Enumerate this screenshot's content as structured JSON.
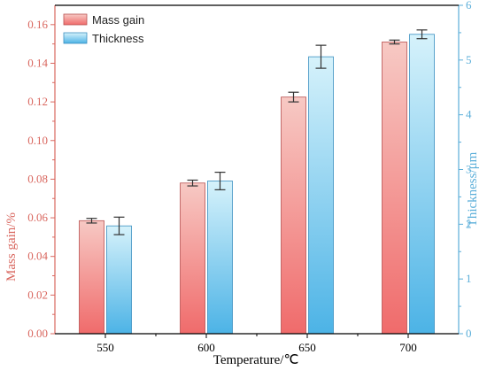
{
  "chart_data": {
    "type": "bar",
    "categories": [
      "550",
      "600",
      "650",
      "700"
    ],
    "xlabel": "Temperature/℃",
    "series": [
      {
        "name": "Mass gain",
        "axis": "left",
        "values": [
          0.0585,
          0.078,
          0.1225,
          0.151
        ],
        "errors": [
          0.0012,
          0.0015,
          0.0025,
          0.001
        ],
        "color_top": "#f7c9c4",
        "color_bottom": "#f06b6b",
        "stroke": "#b85050"
      },
      {
        "name": "Thickness",
        "axis": "right",
        "values": [
          1.97,
          2.79,
          5.06,
          5.47
        ],
        "errors": [
          0.16,
          0.16,
          0.21,
          0.08
        ],
        "color_top": "#d6f2fb",
        "color_bottom": "#4cb3e6",
        "stroke": "#3a8fc0"
      }
    ],
    "y_left": {
      "label": "Mass gain/%",
      "ylim": [
        0,
        0.17
      ],
      "ticks": [
        "0.00",
        "0.02",
        "0.04",
        "0.06",
        "0.08",
        "0.10",
        "0.12",
        "0.14",
        "0.16"
      ],
      "color": "#d9675f"
    },
    "y_right": {
      "label": "Thickness/μm",
      "ylim": [
        0,
        6
      ],
      "ticks": [
        "0",
        "1",
        "2",
        "3",
        "4",
        "5",
        "6"
      ],
      "color": "#5aaed9"
    },
    "grid": false,
    "legend": "top-left"
  }
}
